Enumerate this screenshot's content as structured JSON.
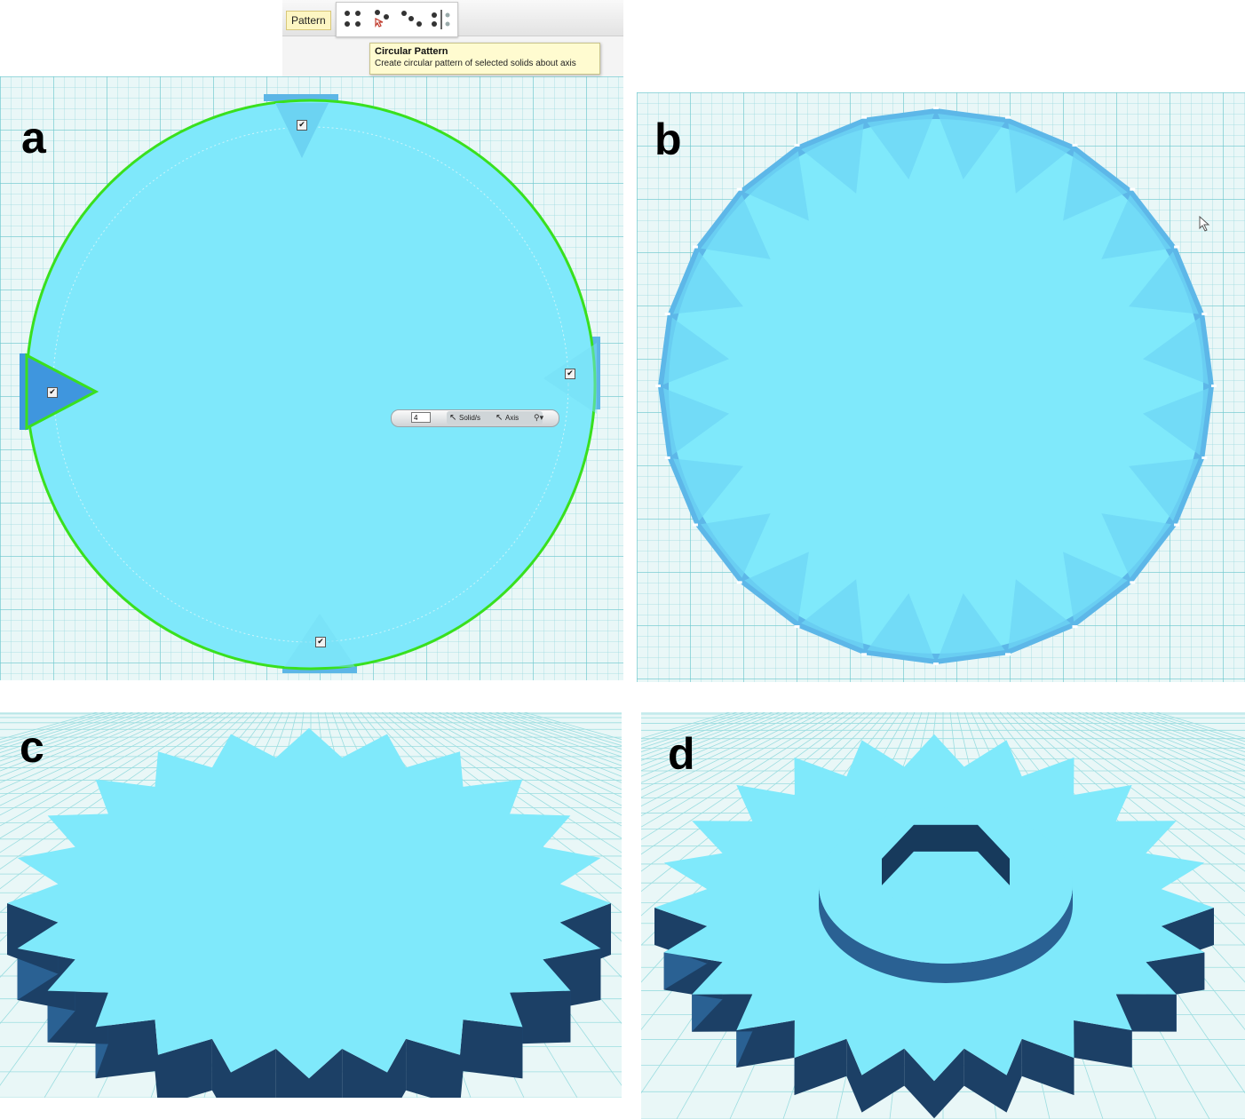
{
  "panels": {
    "a": {
      "label": "a"
    },
    "b": {
      "label": "b"
    },
    "c": {
      "label": "c"
    },
    "d": {
      "label": "d"
    }
  },
  "toolbar": {
    "pattern_label": "Pattern",
    "tools": [
      "rectangular-pattern-icon",
      "circular-pattern-icon",
      "path-pattern-icon",
      "mirror-icon"
    ]
  },
  "tooltip": {
    "title": "Circular Pattern",
    "description": "Create circular pattern of selected solids about axis"
  },
  "pattern_panel": {
    "count_value": "4",
    "solids_label": "Solid/s",
    "axis_label": "Axis",
    "dropdown_symbol": "▾"
  },
  "nav_badge": "< | >",
  "colors": {
    "solid_light": "#7fe9fb",
    "solid_mid": "#5dc7ee",
    "tooth": "#3b8fd8",
    "side_dark": "#2a6193",
    "selection_green": "#39e01e",
    "grid_bg": "#e9f7f7"
  },
  "gear_teeth": 24
}
